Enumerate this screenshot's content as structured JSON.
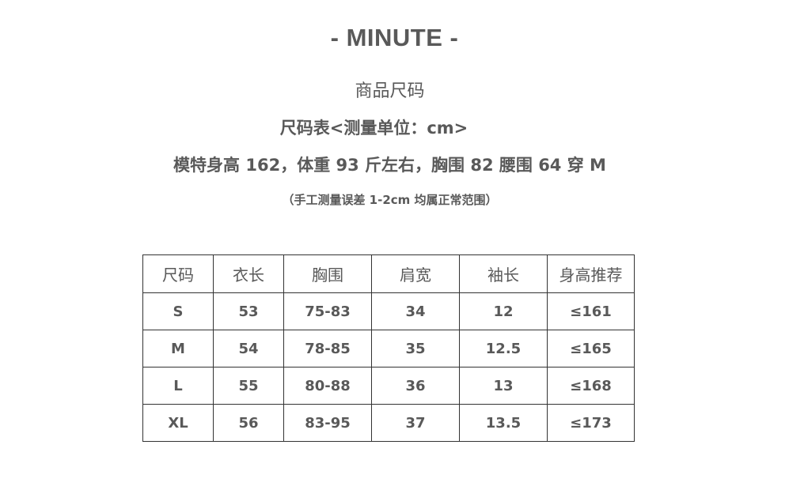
{
  "brand": "- MINUTE -",
  "title": "商品尺码",
  "unit_line": "尺码表<测量单位：cm>",
  "model_line": "模特身高 162，体重 93 斤左右，胸围 82  腰围 64 穿 M",
  "note": "（手工测量误差 1-2cm 均属正常范围）",
  "table": {
    "headers": [
      "尺码",
      "衣长",
      "胸围",
      "肩宽",
      "袖长",
      "身高推荐"
    ],
    "rows": [
      [
        "S",
        "53",
        "75-83",
        "34",
        "12",
        "≤161"
      ],
      [
        "M",
        "54",
        "78-85",
        "35",
        "12.5",
        "≤165"
      ],
      [
        "L",
        "55",
        "80-88",
        "36",
        "13",
        "≤168"
      ],
      [
        "XL",
        "56",
        "83-95",
        "37",
        "13.5",
        "≤173"
      ]
    ]
  }
}
